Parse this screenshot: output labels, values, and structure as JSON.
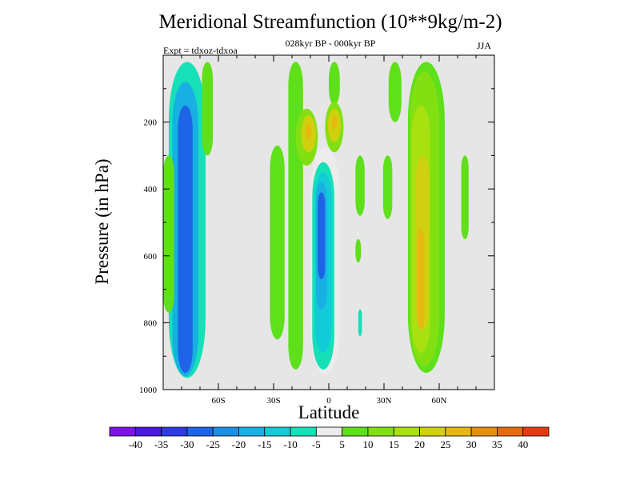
{
  "chart_data": {
    "type": "heatmap",
    "title": "Meridional Streamfunction (10**9kg/m-2)",
    "subtitle": "028kyr BP - 000kyr BP",
    "left_label": "Expt = tdxoz-tdxoa",
    "right_label": "JJA",
    "xlabel": "Latitude",
    "ylabel": "Pressure (in hPa)",
    "x_ticks": [
      "60S",
      "30S",
      "0",
      "30N",
      "60N"
    ],
    "y_ticks": [
      "200",
      "400",
      "600",
      "800",
      "1000"
    ],
    "xlim": [
      -90,
      90
    ],
    "ylim": [
      1000,
      0
    ],
    "y_reversed": true,
    "levels": [
      -40,
      -35,
      -30,
      -25,
      -20,
      -15,
      -10,
      -5,
      5,
      10,
      15,
      20,
      25,
      30,
      35,
      40
    ],
    "colorbar_colors": [
      "#7d12e8",
      "#4a18e0",
      "#2c3be2",
      "#1d64e6",
      "#1a8fe6",
      "#18b0e2",
      "#12cbd6",
      "#15e0b8",
      "#ececec",
      "#5ee01a",
      "#82e012",
      "#a8e010",
      "#d0d010",
      "#e6b810",
      "#e69010",
      "#e66a10",
      "#e63a10"
    ],
    "background_color": "#e6e6e6",
    "features": [
      {
        "lon": -77,
        "p": 20,
        "w": 20,
        "h": 945,
        "value": -10
      },
      {
        "lon": -78,
        "p": 80,
        "w": 14,
        "h": 880,
        "value": -20
      },
      {
        "lon": -78,
        "p": 150,
        "w": 8,
        "h": 800,
        "value": -30
      },
      {
        "lon": -87,
        "p": 300,
        "w": 6,
        "h": 470,
        "value": 5
      },
      {
        "lon": -66,
        "p": 20,
        "w": 6,
        "h": 280,
        "value": 5
      },
      {
        "lon": -28,
        "p": 270,
        "w": 8,
        "h": 580,
        "value": 5
      },
      {
        "lon": -18,
        "p": 20,
        "w": 8,
        "h": 920,
        "value": 5
      },
      {
        "lon": -12,
        "p": 160,
        "w": 12,
        "h": 170,
        "value": 10
      },
      {
        "lon": -11,
        "p": 180,
        "w": 8,
        "h": 110,
        "value": 20
      },
      {
        "lon": -11,
        "p": 205,
        "w": 3,
        "h": 50,
        "value": 25
      },
      {
        "lon": 3,
        "p": 20,
        "w": 6,
        "h": 130,
        "value": 5
      },
      {
        "lon": 3,
        "p": 140,
        "w": 10,
        "h": 150,
        "value": 10
      },
      {
        "lon": 3,
        "p": 160,
        "w": 7,
        "h": 100,
        "value": 20
      },
      {
        "lon": 3,
        "p": 180,
        "w": 3,
        "h": 40,
        "value": 25
      },
      {
        "lon": -2,
        "p": 275,
        "w": 16,
        "h": 680,
        "value": -5
      },
      {
        "lon": -3,
        "p": 320,
        "w": 12,
        "h": 620,
        "value": -10
      },
      {
        "lon": -3,
        "p": 350,
        "w": 9,
        "h": 540,
        "value": -15
      },
      {
        "lon": -4,
        "p": 380,
        "w": 6,
        "h": 380,
        "value": -20
      },
      {
        "lon": -4,
        "p": 410,
        "w": 4,
        "h": 260,
        "value": -30
      },
      {
        "lon": 17,
        "p": 300,
        "w": 5,
        "h": 180,
        "value": 5
      },
      {
        "lon": 16,
        "p": 550,
        "w": 3,
        "h": 70,
        "value": 5
      },
      {
        "lon": 17,
        "p": 760,
        "w": 2,
        "h": 80,
        "value": -10
      },
      {
        "lon": 36,
        "p": 20,
        "w": 7,
        "h": 180,
        "value": 5
      },
      {
        "lon": 32,
        "p": 300,
        "w": 5,
        "h": 190,
        "value": 5
      },
      {
        "lon": 53,
        "p": 20,
        "w": 20,
        "h": 930,
        "value": 5
      },
      {
        "lon": 52,
        "p": 50,
        "w": 16,
        "h": 880,
        "value": 10
      },
      {
        "lon": 50,
        "p": 150,
        "w": 10,
        "h": 740,
        "value": 15
      },
      {
        "lon": 51,
        "p": 300,
        "w": 7,
        "h": 520,
        "value": 20
      },
      {
        "lon": 50,
        "p": 520,
        "w": 4,
        "h": 300,
        "value": 25
      },
      {
        "lon": 74,
        "p": 300,
        "w": 4,
        "h": 250,
        "value": 5
      }
    ]
  }
}
